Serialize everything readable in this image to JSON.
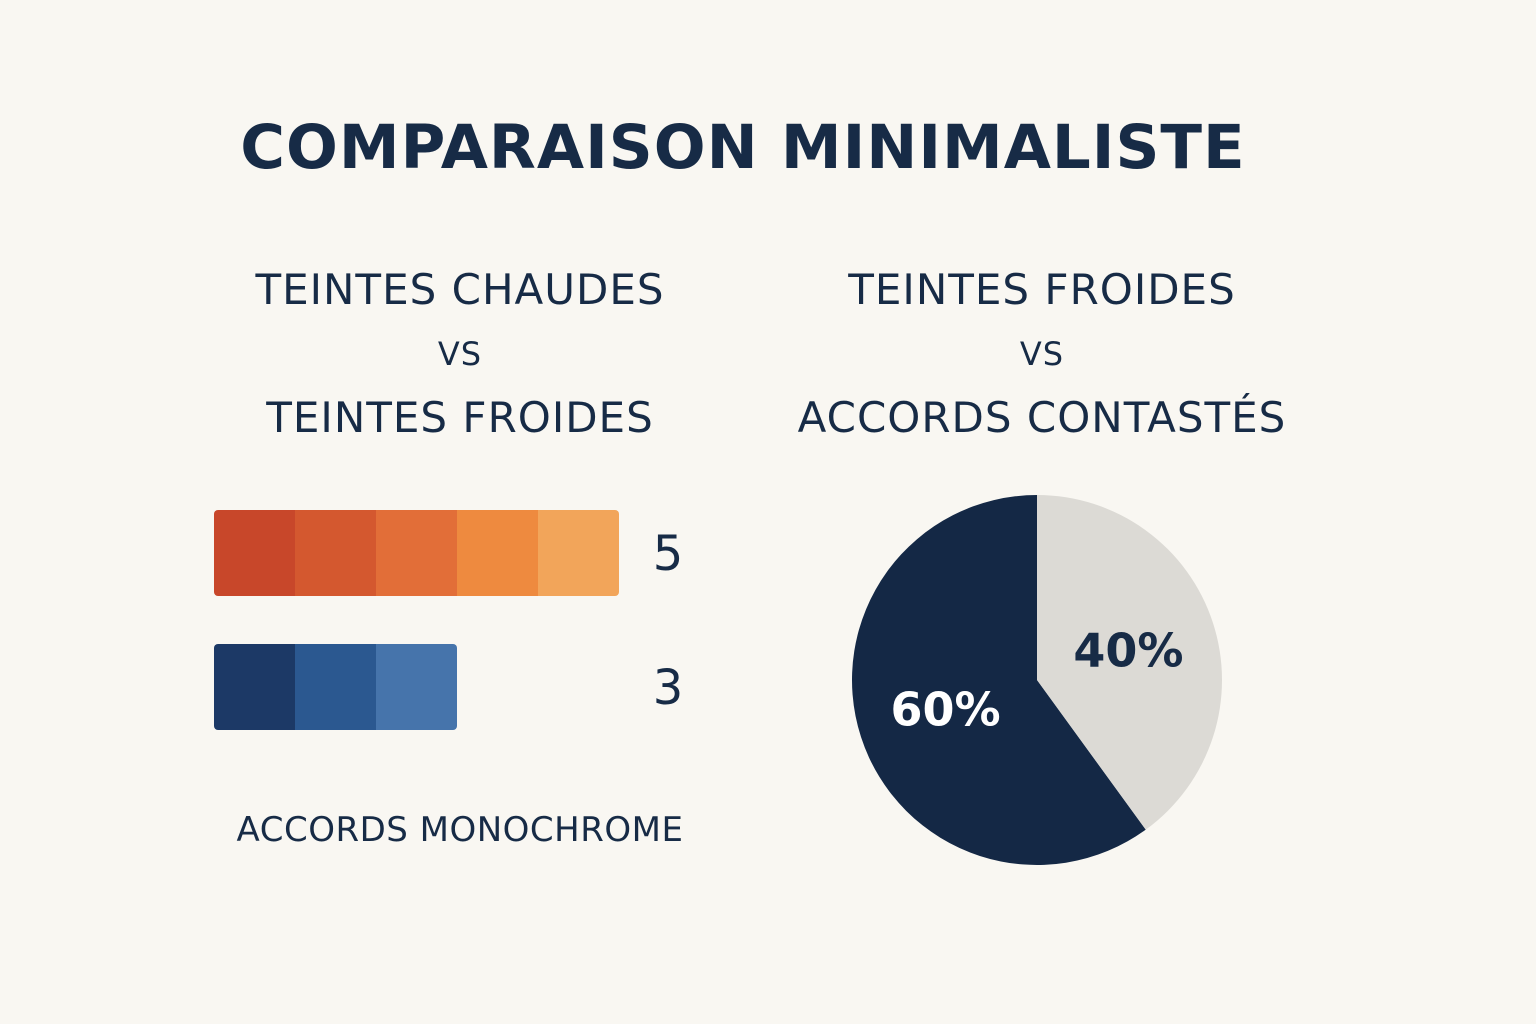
{
  "title": "COMPARAISON MINIMALISTE",
  "left_panel": {
    "line1": "TEINTES CHAUDES",
    "vs": "VS",
    "line2": "TEINTES FROIDES",
    "footer": "ACCORDS MONOCHROME"
  },
  "right_panel": {
    "line1": "TEINTES FROIDES",
    "vs": "VS",
    "line2": "ACCORDS CONTASTÉS"
  },
  "chart_data": [
    {
      "type": "bar",
      "orientation": "horizontal",
      "categories": [
        "TEINTES CHAUDES",
        "TEINTES FROIDES"
      ],
      "values": [
        5,
        3
      ],
      "value_labels": [
        "5",
        "3"
      ],
      "segment_colors": [
        [
          "#c8472a",
          "#d4582f",
          "#e26e38",
          "#ee8a3f",
          "#f2a55a"
        ],
        [
          "#1c3966",
          "#2b5890",
          "#4674ab",
          "#6b9ac8"
        ]
      ]
    },
    {
      "type": "pie",
      "slices": [
        {
          "value": 60,
          "label": "60%",
          "color": "#142845",
          "label_color": "#ffffff"
        },
        {
          "value": 40,
          "label": "40%",
          "color": "#dcdad5",
          "label_color": "#172b46"
        }
      ]
    }
  ]
}
